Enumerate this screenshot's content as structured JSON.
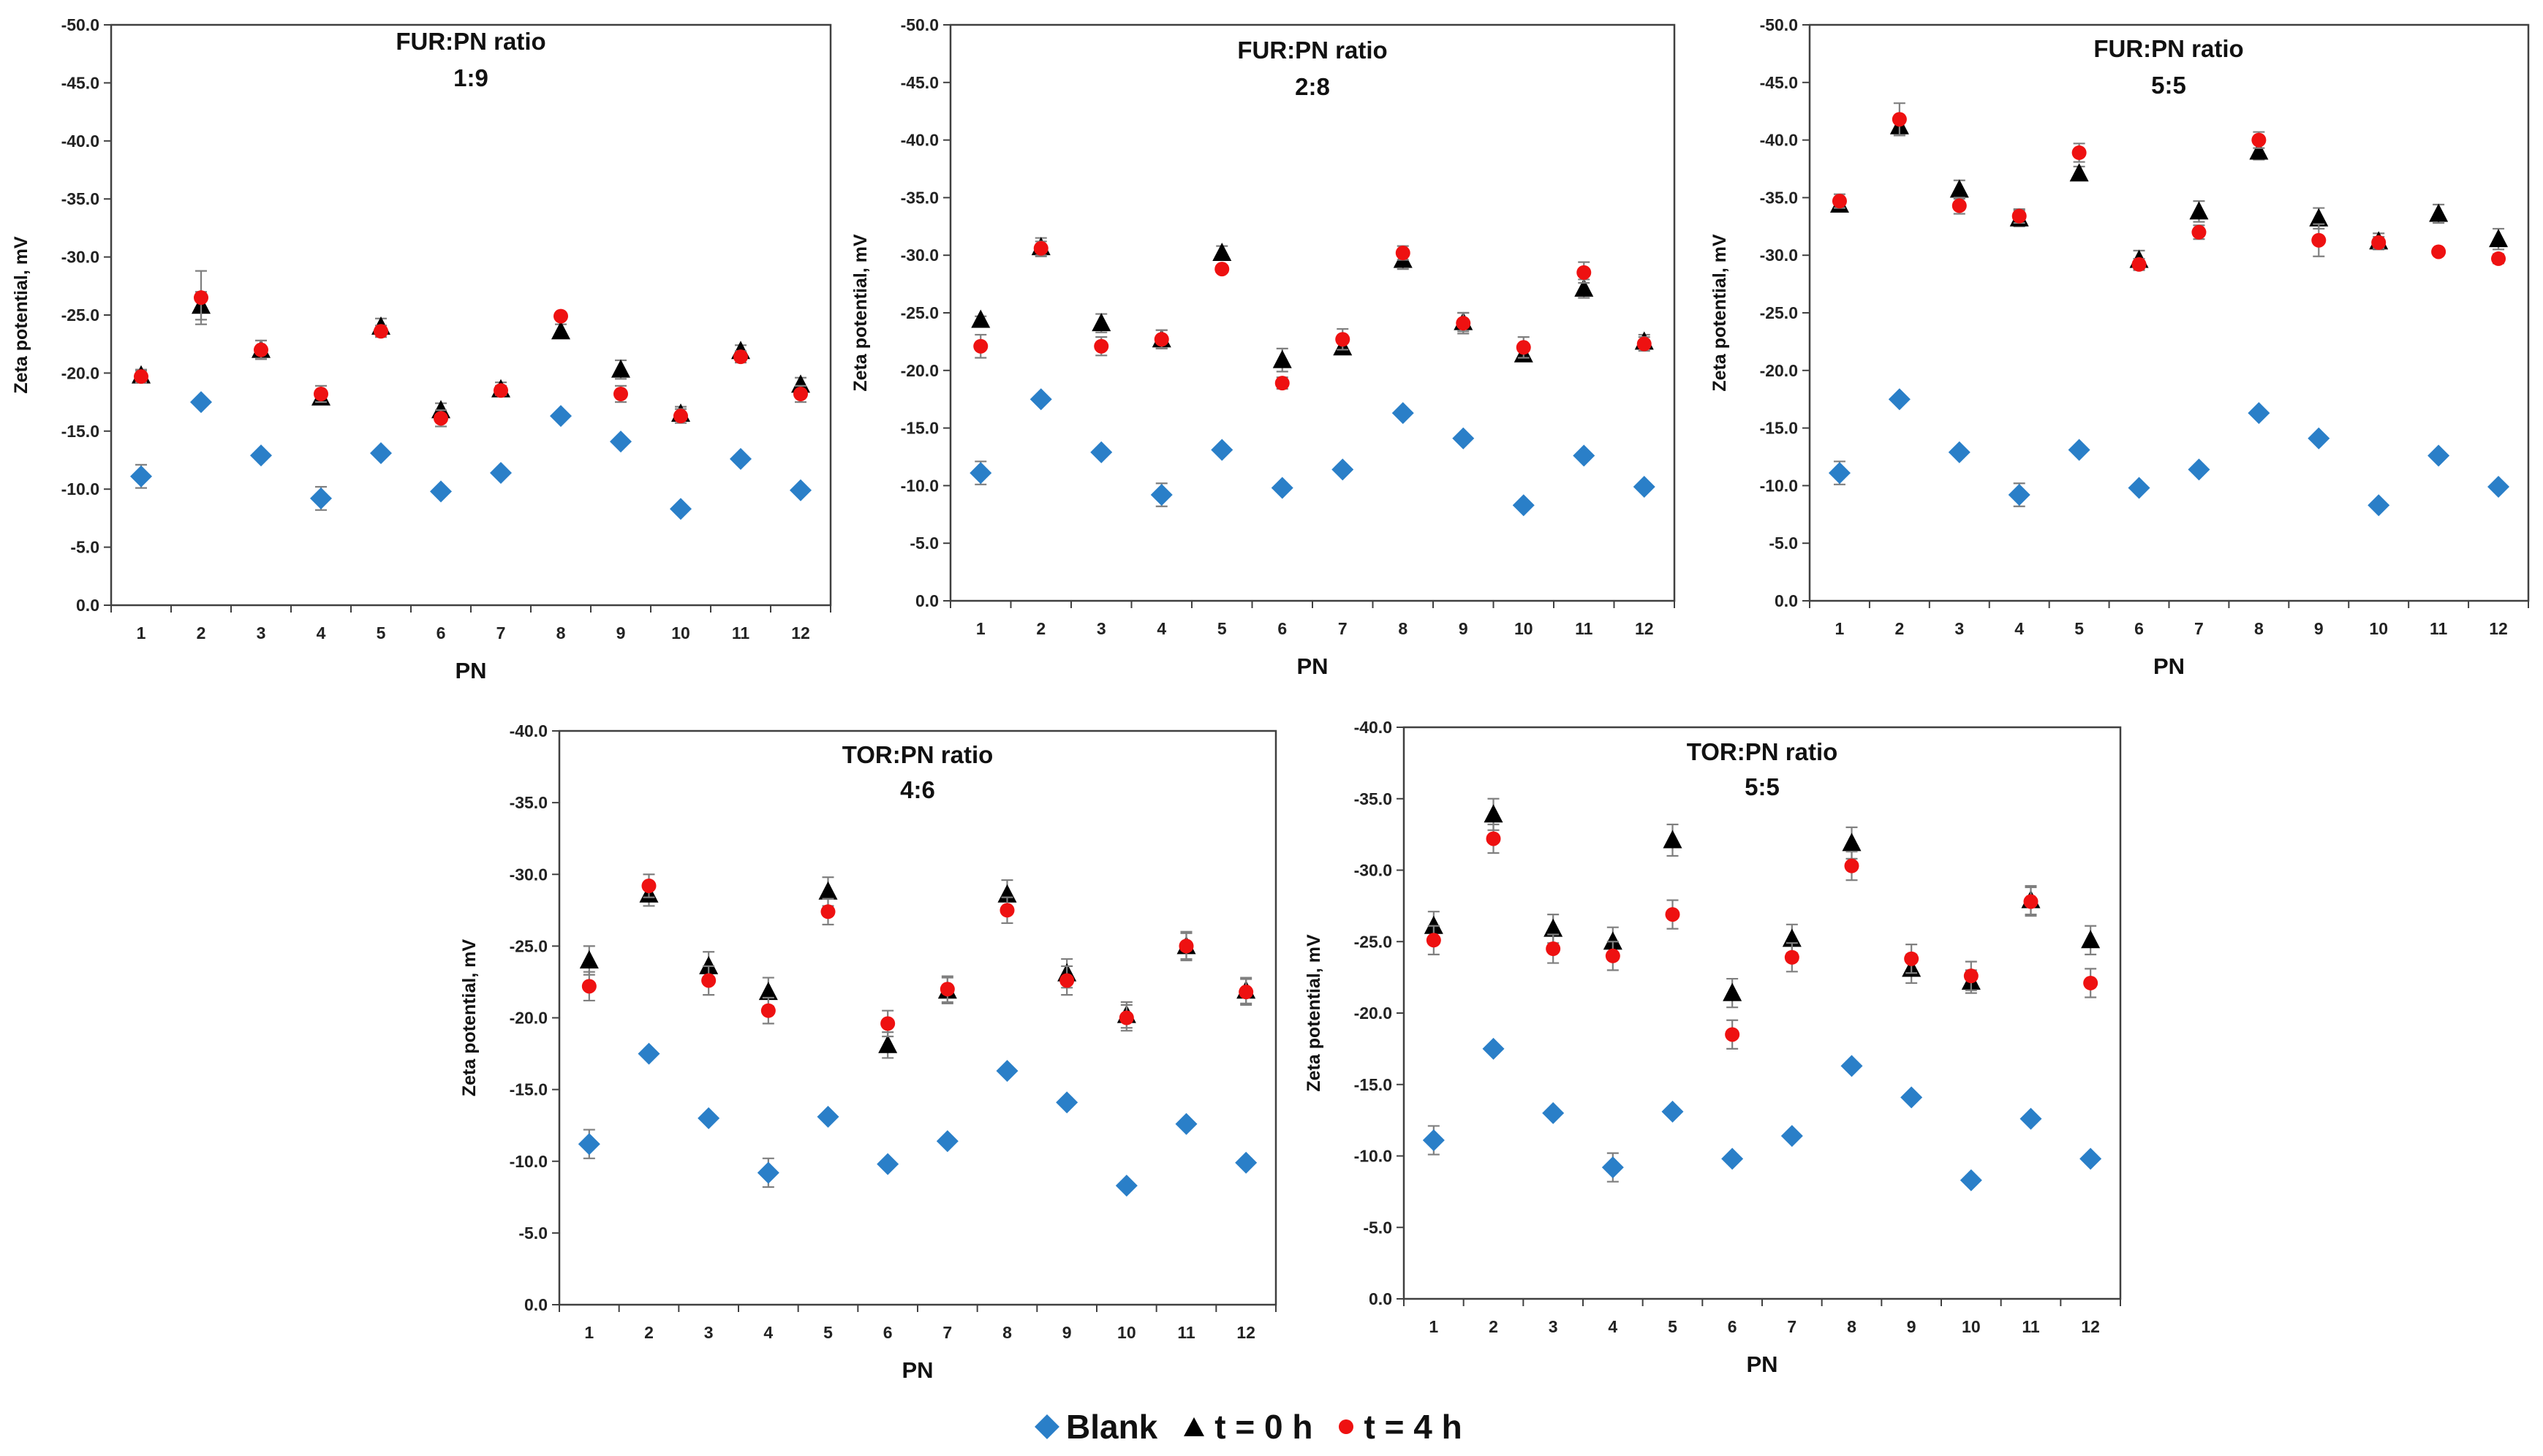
{
  "legend": {
    "blank": "Blank",
    "t0": "t = 0 h",
    "t4": "t = 4 h"
  },
  "colors": {
    "blank": "#2a7fc8",
    "t0": "#000000",
    "t4": "#ee1111",
    "error": "#7f7f7f",
    "axis": "#404040"
  },
  "chart_data": [
    {
      "type": "scatter",
      "title": "FUR:PN ratio",
      "subtitle": "1:9",
      "xlabel": "PN",
      "ylabel": "Zeta potential, mV",
      "ylim": [
        0,
        -50
      ],
      "yticks": [
        "-50.0",
        "-45.0",
        "-40.0",
        "-35.0",
        "-30.0",
        "-25.0",
        "-20.0",
        "-15.0",
        "-10.0",
        "-5.0",
        "0.0"
      ],
      "categories": [
        "1",
        "2",
        "3",
        "4",
        "5",
        "6",
        "7",
        "8",
        "9",
        "10",
        "11",
        "12"
      ],
      "series": [
        {
          "name": "Blank",
          "values": [
            -11.1,
            -17.5,
            -12.9,
            -9.2,
            -13.1,
            -9.8,
            -11.4,
            -16.3,
            -14.1,
            -8.3,
            -12.6,
            -9.9
          ],
          "errors": [
            1.0,
            0.3,
            0.3,
            1.0,
            0.3,
            0.3,
            0.3,
            0.3,
            0.3,
            0.3,
            0.3,
            0.3
          ]
        },
        {
          "name": "t = 0 h",
          "values": [
            -19.8,
            -25.8,
            -22.0,
            -17.9,
            -24.0,
            -16.8,
            -18.6,
            -23.6,
            -20.3,
            -16.5,
            -21.9,
            -19.0
          ],
          "errors": [
            0.5,
            1.2,
            0.8,
            0.5,
            0.7,
            0.6,
            0.6,
            0.6,
            0.8,
            0.6,
            0.5,
            0.6
          ]
        },
        {
          "name": "t = 4 h",
          "values": [
            -19.7,
            -26.5,
            -22.0,
            -18.2,
            -23.6,
            -16.1,
            -18.5,
            -24.9,
            -18.2,
            -16.3,
            -21.4,
            -18.2
          ],
          "errors": [
            0.5,
            2.3,
            0.8,
            0.7,
            0.5,
            0.7,
            0.4,
            0.3,
            0.7,
            0.6,
            0.5,
            0.7
          ]
        }
      ]
    },
    {
      "type": "scatter",
      "title": "FUR:PN ratio",
      "subtitle": "2:8",
      "xlabel": "PN",
      "ylabel": "Zeta potential, mV",
      "ylim": [
        0,
        -50
      ],
      "yticks": [
        "-50.0",
        "-45.0",
        "-40.0",
        "-35.0",
        "-30.0",
        "-25.0",
        "-20.0",
        "-15.0",
        "-10.0",
        "-5.0",
        "0.0"
      ],
      "categories": [
        "1",
        "2",
        "3",
        "4",
        "5",
        "6",
        "7",
        "8",
        "9",
        "10",
        "11",
        "12"
      ],
      "series": [
        {
          "name": "Blank",
          "values": [
            -11.1,
            -17.5,
            -12.9,
            -9.2,
            -13.1,
            -9.8,
            -11.4,
            -16.3,
            -14.1,
            -8.3,
            -12.6,
            -9.9
          ],
          "errors": [
            1.0,
            0.3,
            0.3,
            1.0,
            0.3,
            0.3,
            0.3,
            0.3,
            0.3,
            0.3,
            0.3,
            0.3
          ]
        },
        {
          "name": "t = 0 h",
          "values": [
            -24.4,
            -30.7,
            -24.1,
            -22.7,
            -30.2,
            -20.9,
            -22.0,
            -29.6,
            -24.2,
            -21.4,
            -27.1,
            -22.5
          ],
          "errors": [
            0.3,
            0.8,
            0.8,
            0.8,
            0.6,
            1.0,
            0.6,
            0.8,
            0.8,
            0.5,
            0.8,
            0.6
          ]
        },
        {
          "name": "t = 4 h",
          "values": [
            -22.1,
            -30.6,
            -22.1,
            -22.7,
            -28.8,
            -18.9,
            -22.7,
            -30.2,
            -24.1,
            -22.0,
            -28.5,
            -22.3
          ],
          "errors": [
            1.0,
            0.6,
            0.8,
            0.8,
            0.3,
            0.5,
            0.9,
            0.6,
            0.9,
            0.9,
            0.9,
            0.6
          ]
        }
      ]
    },
    {
      "type": "scatter",
      "title": "FUR:PN ratio",
      "subtitle": "5:5",
      "xlabel": "PN",
      "ylabel": "Zeta potential, mV",
      "ylim": [
        0,
        -50
      ],
      "yticks": [
        "-50.0",
        "-45.0",
        "-40.0",
        "-35.0",
        "-30.0",
        "-25.0",
        "-20.0",
        "-15.0",
        "-10.0",
        "-5.0",
        "0.0"
      ],
      "categories": [
        "1",
        "2",
        "3",
        "4",
        "5",
        "6",
        "7",
        "8",
        "9",
        "10",
        "11",
        "12"
      ],
      "series": [
        {
          "name": "Blank",
          "values": [
            -11.1,
            -17.5,
            -12.9,
            -9.2,
            -13.1,
            -9.8,
            -11.4,
            -16.3,
            -14.1,
            -8.3,
            -12.6,
            -9.9
          ],
          "errors": [
            1.0,
            0.3,
            0.3,
            1.0,
            0.3,
            0.3,
            0.3,
            0.3,
            0.3,
            0.3,
            0.3,
            0.3
          ]
        },
        {
          "name": "t = 0 h",
          "values": [
            -34.4,
            -41.2,
            -35.7,
            -33.2,
            -37.1,
            -29.6,
            -33.8,
            -39.0,
            -33.2,
            -31.2,
            -33.6,
            -31.4
          ],
          "errors": [
            0.6,
            0.8,
            0.8,
            0.7,
            0.6,
            0.8,
            0.9,
            0.7,
            0.9,
            0.7,
            0.8,
            0.9
          ]
        },
        {
          "name": "t = 4 h",
          "values": [
            -34.7,
            -41.8,
            -34.3,
            -33.4,
            -38.9,
            -29.2,
            -32.0,
            -40.0,
            -31.3,
            -31.1,
            -30.3,
            -29.7
          ],
          "errors": [
            0.6,
            1.4,
            0.7,
            0.6,
            0.8,
            0.5,
            0.6,
            0.7,
            1.4,
            0.5,
            0.3,
            0.4
          ]
        }
      ]
    },
    {
      "type": "scatter",
      "title": "TOR:PN ratio",
      "subtitle": "4:6",
      "xlabel": "PN",
      "ylabel": "Zeta potential, mV",
      "ylim": [
        0,
        -40
      ],
      "yticks": [
        "-40.0",
        "-35.0",
        "-30.0",
        "-25.0",
        "-20.0",
        "-15.0",
        "-10.0",
        "-5.0",
        "0.0"
      ],
      "categories": [
        "1",
        "2",
        "3",
        "4",
        "5",
        "6",
        "7",
        "8",
        "9",
        "10",
        "11",
        "12"
      ],
      "series": [
        {
          "name": "Blank",
          "values": [
            -11.2,
            -17.5,
            -13.0,
            -9.2,
            -13.1,
            -9.8,
            -11.4,
            -16.3,
            -14.1,
            -8.3,
            -12.6,
            -9.9
          ],
          "errors": [
            1.0,
            0.3,
            0.3,
            1.0,
            0.3,
            0.3,
            0.3,
            0.3,
            0.3,
            0.3,
            0.3,
            0.3
          ]
        },
        {
          "name": "t = 0 h",
          "values": [
            -24.0,
            -28.6,
            -23.6,
            -21.8,
            -28.8,
            -18.1,
            -21.9,
            -28.6,
            -23.1,
            -20.2,
            -25.0,
            -21.9
          ],
          "errors": [
            1.0,
            0.8,
            1.0,
            1.0,
            1.0,
            0.9,
            0.9,
            1.0,
            1.0,
            0.9,
            0.9,
            0.9
          ]
        },
        {
          "name": "t = 4 h",
          "values": [
            -22.2,
            -29.2,
            -22.6,
            -20.5,
            -27.4,
            -19.6,
            -22.0,
            -27.5,
            -22.6,
            -20.0,
            -25.0,
            -21.8
          ],
          "errors": [
            1.0,
            0.8,
            1.0,
            0.9,
            0.9,
            0.9,
            0.9,
            0.9,
            1.0,
            0.9,
            1.0,
            0.9
          ]
        }
      ]
    },
    {
      "type": "scatter",
      "title": "TOR:PN ratio",
      "subtitle": "5:5",
      "xlabel": "PN",
      "ylabel": "Zeta potential, mV",
      "ylim": [
        0,
        -40
      ],
      "yticks": [
        "-40.0",
        "-35.0",
        "-30.0",
        "-25.0",
        "-20.0",
        "-15.0",
        "-10.0",
        "-5.0",
        "0.0"
      ],
      "categories": [
        "1",
        "2",
        "3",
        "4",
        "5",
        "6",
        "7",
        "8",
        "9",
        "10",
        "11",
        "12"
      ],
      "series": [
        {
          "name": "Blank",
          "values": [
            -11.1,
            -17.5,
            -13.0,
            -9.2,
            -13.1,
            -9.8,
            -11.4,
            -16.3,
            -14.1,
            -8.3,
            -12.6,
            -9.8
          ],
          "errors": [
            1.0,
            0.3,
            0.3,
            1.0,
            0.3,
            0.3,
            0.3,
            0.3,
            0.3,
            0.3,
            0.3,
            0.3
          ]
        },
        {
          "name": "t = 0 h",
          "values": [
            -26.1,
            -33.9,
            -25.9,
            -25.0,
            -32.1,
            -21.4,
            -25.2,
            -31.9,
            -23.1,
            -22.2,
            -27.9,
            -25.1
          ],
          "errors": [
            1.0,
            1.1,
            1.0,
            1.0,
            1.1,
            1.0,
            1.0,
            1.1,
            1.0,
            0.8,
            1.0,
            1.0
          ]
        },
        {
          "name": "t = 4 h",
          "values": [
            -25.1,
            -32.2,
            -24.5,
            -24.0,
            -26.9,
            -18.5,
            -23.9,
            -30.3,
            -23.8,
            -22.6,
            -27.8,
            -22.1
          ],
          "errors": [
            1.0,
            1.0,
            1.0,
            1.0,
            1.0,
            1.0,
            1.0,
            1.0,
            1.0,
            1.0,
            1.0,
            1.0
          ]
        }
      ]
    }
  ]
}
